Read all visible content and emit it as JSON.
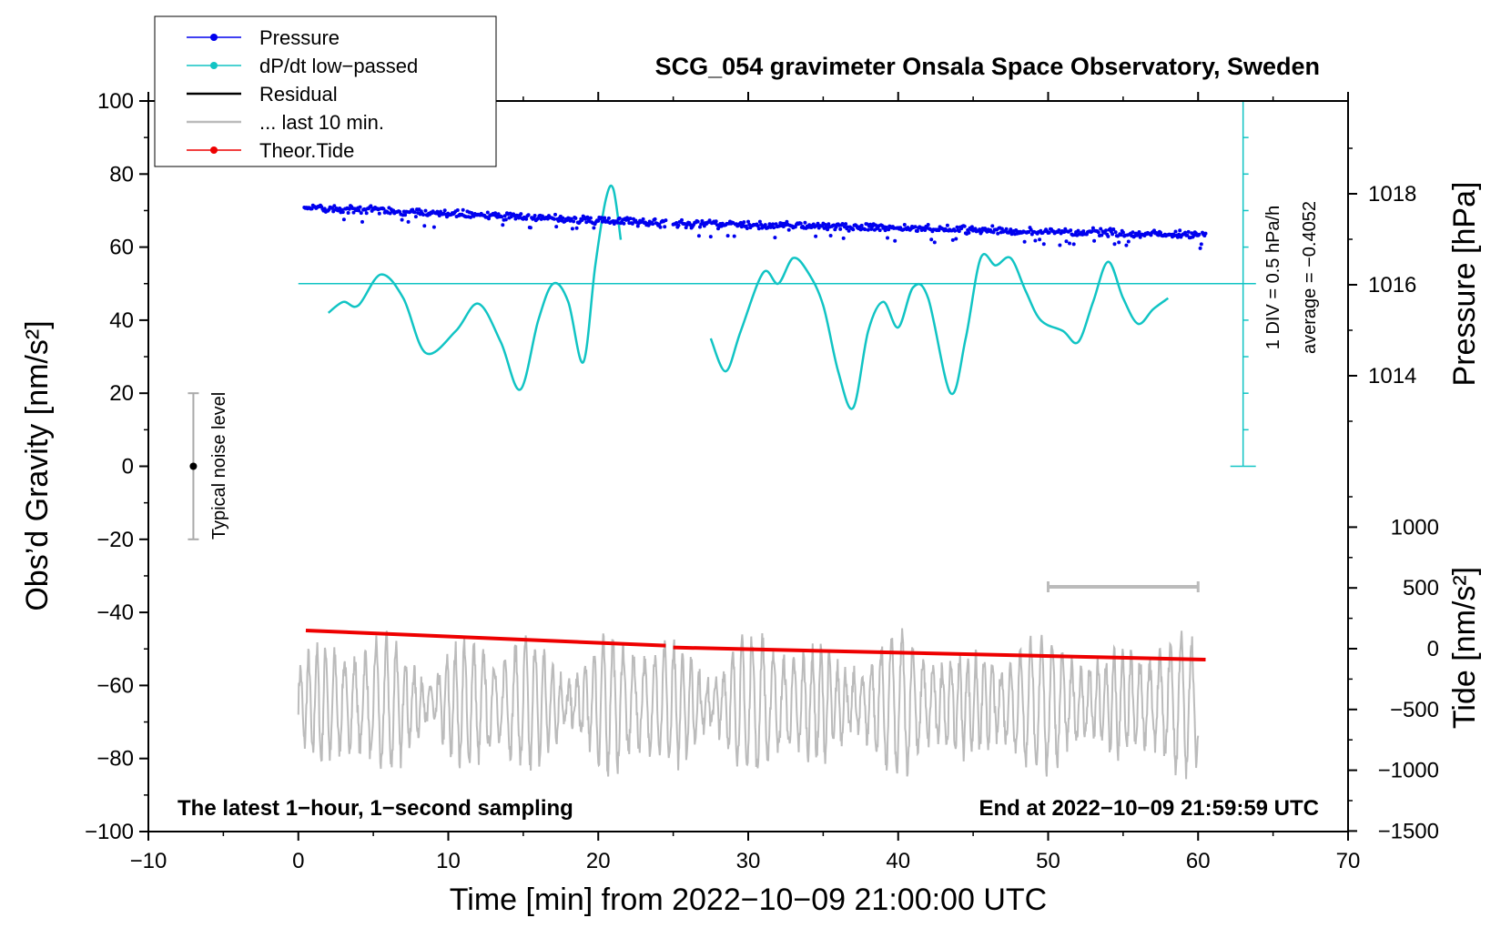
{
  "chart_data": {
    "type": "line",
    "title": "SCG_054 gravimeter Onsala Space Observatory, Sweden",
    "xlabel": "Time [min] from 2022−10−09 21:00:00 UTC",
    "ylabel_left": "Obs’d Gravity [nm/s²]",
    "ylabel_right_pressure": "Pressure [hPa]",
    "ylabel_right_tide": "Tide [nm/s²]",
    "xlim": [
      -10,
      70
    ],
    "ylim_left": [
      -100,
      100
    ],
    "x_ticks": [
      {
        "value": -10,
        "label": "−10"
      },
      {
        "value": 0,
        "label": "0"
      },
      {
        "value": 10,
        "label": "10"
      },
      {
        "value": 20,
        "label": "20"
      },
      {
        "value": 30,
        "label": "30"
      },
      {
        "value": 40,
        "label": "40"
      },
      {
        "value": 50,
        "label": "50"
      },
      {
        "value": 60,
        "label": "60"
      },
      {
        "value": 70,
        "label": "70"
      }
    ],
    "y_ticks_left": [
      {
        "value": 100,
        "label": "100"
      },
      {
        "value": 80,
        "label": "80"
      },
      {
        "value": 60,
        "label": "60"
      },
      {
        "value": 40,
        "label": "40"
      },
      {
        "value": 20,
        "label": "20"
      },
      {
        "value": 0,
        "label": "0"
      },
      {
        "value": -20,
        "label": "−20"
      },
      {
        "value": -40,
        "label": "−40"
      },
      {
        "value": -60,
        "label": "−60"
      },
      {
        "value": -80,
        "label": "−80"
      },
      {
        "value": -100,
        "label": "−100"
      }
    ],
    "pressure_axis": {
      "ticks": [
        {
          "value": 1018,
          "label": "1018"
        },
        {
          "value": 1016,
          "label": "1016"
        },
        {
          "value": 1014,
          "label": "1014"
        }
      ],
      "range_hpa": [
        1012,
        1020
      ]
    },
    "tide_axis": {
      "ticks": [
        {
          "value": 1000,
          "label": "1000"
        },
        {
          "value": 500,
          "label": "500"
        },
        {
          "value": 0,
          "label": "0"
        },
        {
          "value": -500,
          "label": "−500"
        },
        {
          "value": -1000,
          "label": "−1000"
        },
        {
          "value": -1500,
          "label": "−1500"
        }
      ],
      "range": [
        -1500,
        1500
      ]
    },
    "legend": {
      "position": "top-left",
      "entries": [
        {
          "label": "Pressure",
          "color": "#0000ee",
          "style": "line-dot"
        },
        {
          "label": "dP/dt low−passed",
          "color": "#11c4c4",
          "style": "line-dot"
        },
        {
          "label": "Residual",
          "color": "#000000",
          "style": "line"
        },
        {
          "label": "... last 10 min.",
          "color": "#bbbbbb",
          "style": "line"
        },
        {
          "label": "Theor.Tide",
          "color": "#ee0000",
          "style": "line-dot"
        }
      ]
    },
    "noise_label": "Typical noise level",
    "noise_range": [
      -20,
      20
    ],
    "noise_x": -7,
    "div_label": "1 DIV = 0.5 hPa/h",
    "avg_label": "average = −0.4052",
    "dpdt_scale_x": 63,
    "dpdt_baseline_y": 50,
    "last10_range": [
      50,
      60
    ],
    "last10_y": -33,
    "note_left": "The latest 1−hour, 1−second sampling",
    "note_right": "End at 2022−10−09 21:59:59 UTC",
    "colors": {
      "pressure": "#0000ee",
      "dpdt": "#11c4c4",
      "residual": "#000000",
      "residual_smooth": "#c8c800",
      "last10": "#bbbbbb",
      "tide": "#ee0000",
      "noise": "#aaaaaa"
    },
    "series": [
      {
        "name": "Pressure",
        "unit": "hPa",
        "segments": [
          {
            "x": [
              0.4,
              24.5
            ],
            "y": [
              1017.7,
              1017.35
            ]
          },
          {
            "x": [
              25.0,
              60.5
            ],
            "y": [
              1017.35,
              1017.1
            ]
          }
        ]
      },
      {
        "name": "dP/dt low-passed",
        "unit": "obs-axis equivalent",
        "segments": [
          {
            "x": [
              2.0,
              3.0,
              4.0,
              5.5,
              7.0,
              8.5,
              10.5,
              12.0,
              13.5,
              14.8,
              16.0,
              17.0,
              18.0,
              19.0,
              19.8,
              20.5,
              21.0,
              21.5
            ],
            "y": [
              42,
              45,
              44,
              52.5,
              46,
              31,
              37,
              44.5,
              34,
              21,
              40,
              50,
              45,
              28.5,
              55,
              73,
              76,
              62
            ]
          },
          {
            "x": [
              27.5,
              28.5,
              29.5,
              31.0,
              32.0,
              33.0,
              34.0,
              35.0,
              36.0,
              37.0,
              38.0,
              39.0,
              40.0,
              41.0,
              42.0,
              43.5,
              44.5,
              45.5,
              46.5,
              47.5,
              48.5,
              49.5,
              51.0,
              52.0,
              53.0,
              54.0,
              55.0,
              56.0,
              57.0,
              58.0
            ],
            "y": [
              35,
              26,
              37,
              53,
              50,
              57,
              53,
              44,
              26,
              16,
              37,
              45,
              38,
              49,
              46,
              20,
              35,
              57,
              55,
              57,
              48,
              40,
              37,
              34,
              45,
              56,
              46,
              39,
              43,
              46
            ]
          }
        ]
      },
      {
        "name": "Residual",
        "unit": "nm/s2",
        "segments": [
          {
            "x": [
              0.0,
              24.0
            ],
            "amplitude": 22
          },
          {
            "x": [
              25.5,
              60.0
            ],
            "amplitude": 22
          }
        ]
      },
      {
        "name": "... last 10 min.",
        "unit": "nm/s2",
        "offset": -65,
        "x": [
          0.0,
          60.0
        ],
        "amplitude": 15
      },
      {
        "name": "Theor.Tide",
        "unit": "nm/s2",
        "segments": [
          {
            "x": [
              0.5,
              24.5
            ],
            "y": [
              150,
              25
            ]
          },
          {
            "x": [
              25.0,
              60.5
            ],
            "y": [
              10,
              -90
            ]
          }
        ]
      }
    ]
  }
}
